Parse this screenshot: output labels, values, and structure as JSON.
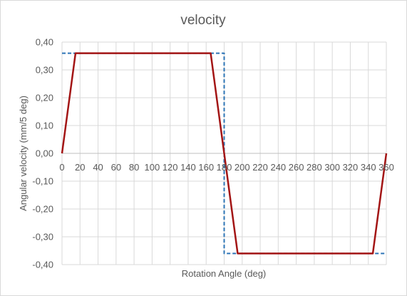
{
  "chart_data": {
    "type": "line",
    "title": "velocity",
    "xlabel": "Rotation Angle (deg)",
    "ylabel": "Angular velocity (mm/5 deg)",
    "xlim": [
      0,
      360
    ],
    "ylim": [
      -0.4,
      0.4
    ],
    "x_ticks": [
      0,
      20,
      40,
      60,
      80,
      100,
      120,
      140,
      160,
      180,
      200,
      220,
      240,
      260,
      280,
      300,
      320,
      340,
      360
    ],
    "x_tick_labels": [
      "0",
      "20",
      "40",
      "60",
      "80",
      "100",
      "120",
      "140",
      "160",
      "180",
      "200",
      "220",
      "240",
      "260",
      "280",
      "300",
      "320",
      "340",
      "360"
    ],
    "y_ticks": [
      -0.4,
      -0.3,
      -0.2,
      -0.1,
      0.0,
      0.1,
      0.2,
      0.3,
      0.4
    ],
    "y_tick_labels": [
      "-0,40",
      "-0,30",
      "-0,20",
      "-0,10",
      "0,00",
      "0,10",
      "0,20",
      "0,30",
      "0,40"
    ],
    "grid": true,
    "legend": "none",
    "colors": {
      "series_solid": "#a31515",
      "series_dashed": "#2e75b6",
      "grid": "#d9d9d9",
      "axis": "#bfbfbf",
      "text": "#595959"
    },
    "series": [
      {
        "style": "dashed",
        "color": "#2e75b6",
        "x": [
          0,
          180,
          180,
          360
        ],
        "y": [
          0.36,
          0.36,
          -0.36,
          -0.36
        ]
      },
      {
        "style": "solid",
        "color": "#a31515",
        "x": [
          0,
          15,
          165,
          195,
          345,
          360
        ],
        "y": [
          0.0,
          0.36,
          0.36,
          -0.36,
          -0.36,
          0.0
        ]
      }
    ]
  }
}
